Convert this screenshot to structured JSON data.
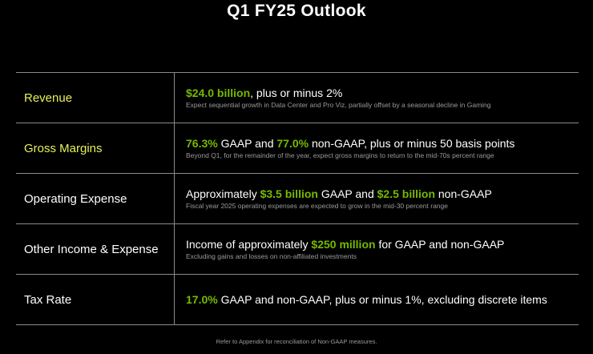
{
  "title": "Q1 FY25 Outlook",
  "colors": {
    "accent_green": "#76b900",
    "label_yellow": "#e6f05a",
    "divider": "#8a8a8a",
    "background": "#000000"
  },
  "rows": [
    {
      "label": "Revenue",
      "main": {
        "h1": "$24.0 billion",
        "t1": ", plus or minus 2%"
      },
      "sub": "Expect sequential growth in Data Center and Pro Viz, partially offset by a seasonal decline in Gaming"
    },
    {
      "label": "Gross Margins",
      "main": {
        "h1": "76.3%",
        "t1": " GAAP and ",
        "h2": "77.0%",
        "t2": " non-GAAP, plus or minus 50 basis points"
      },
      "sub": "Beyond Q1, for the remainder of the year, expect gross margins to return to the mid-70s percent range"
    },
    {
      "label": "Operating Expense",
      "main": {
        "t0": "Approximately ",
        "h1": "$3.5 billion",
        "t1": " GAAP and ",
        "h2": "$2.5 billion",
        "t2": " non-GAAP"
      },
      "sub": "Fiscal year 2025 operating expenses are expected to grow in the mid-30 percent range"
    },
    {
      "label": "Other Income & Expense",
      "main": {
        "t0": "Income of approximately ",
        "h1": "$250 million",
        "t1": " for GAAP and non-GAAP"
      },
      "sub": "Excluding gains and losses on non-affiliated investments"
    },
    {
      "label": "Tax Rate",
      "main": {
        "h1": "17.0%",
        "t1": " GAAP and non-GAAP, plus or minus 1%, excluding discrete items"
      }
    }
  ],
  "footnote": "Refer to Appendix for reconciliation of Non-GAAP measures."
}
